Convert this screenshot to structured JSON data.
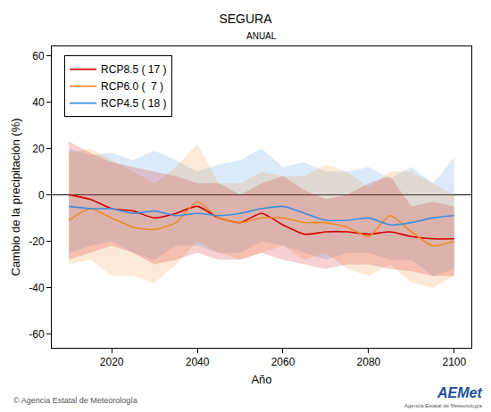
{
  "chart_data": {
    "type": "line",
    "title": "SEGURA",
    "subtitle": "ANUAL",
    "x_label": "Año",
    "y_label": "Cambio de la precipitación (%)",
    "annotations": [
      "© Agencia Estatal de Meteorología",
      "AEMet",
      "Agencia Estatal de Meteorología"
    ],
    "x": [
      2010,
      2015,
      2020,
      2025,
      2030,
      2035,
      2040,
      2045,
      2050,
      2055,
      2060,
      2065,
      2070,
      2075,
      2080,
      2085,
      2090,
      2095,
      2100
    ],
    "series": [
      {
        "name": "RCP8.5 ( 17 )",
        "color": "#d40000",
        "values": [
          0,
          -2,
          -6,
          -7,
          -10,
          -8,
          -5,
          -10,
          -12,
          -8,
          -13,
          -17,
          -16,
          -16,
          -17,
          -16,
          -18,
          -19,
          -19
        ],
        "upper": [
          23,
          18,
          14,
          12,
          10,
          8,
          5,
          5,
          0,
          5,
          8,
          2,
          -2,
          0,
          5,
          8,
          -5,
          -3,
          -5
        ],
        "lower": [
          -28,
          -25,
          -22,
          -25,
          -30,
          -28,
          -25,
          -28,
          -28,
          -25,
          -28,
          -30,
          -32,
          -30,
          -30,
          -32,
          -33,
          -35,
          -35
        ]
      },
      {
        "name": "RCP6.0 (  7 )",
        "color": "#f08a24",
        "values": [
          -11,
          -6,
          -10,
          -14,
          -15,
          -12,
          -3,
          -10,
          -12,
          -10,
          -10,
          -12,
          -12,
          -14,
          -18,
          -9,
          -16,
          -22,
          -20
        ],
        "upper": [
          18,
          20,
          15,
          10,
          5,
          12,
          22,
          5,
          5,
          10,
          8,
          8,
          13,
          10,
          3,
          10,
          10,
          5,
          0
        ],
        "lower": [
          -30,
          -28,
          -35,
          -35,
          -38,
          -30,
          -20,
          -25,
          -28,
          -25,
          -22,
          -28,
          -25,
          -32,
          -35,
          -30,
          -38,
          -40,
          -35
        ]
      },
      {
        "name": "RCP4.5 ( 18 )",
        "color": "#3d8fe0",
        "values": [
          -5,
          -6,
          -6,
          -8,
          -7,
          -9,
          -8,
          -9,
          -8,
          -6,
          -5,
          -8,
          -11,
          -11,
          -10,
          -13,
          -12,
          -10,
          -9
        ],
        "upper": [
          20,
          17,
          18,
          15,
          19,
          15,
          10,
          13,
          15,
          20,
          12,
          14,
          10,
          10,
          12,
          7,
          12,
          5,
          16
        ],
        "lower": [
          -25,
          -22,
          -20,
          -25,
          -28,
          -22,
          -22,
          -25,
          -25,
          -20,
          -22,
          -25,
          -28,
          -25,
          -25,
          -28,
          -28,
          -35,
          -32
        ]
      }
    ],
    "xlim": [
      2006,
      2104
    ],
    "xticks": [
      2020,
      2040,
      2060,
      2080,
      2100
    ],
    "ylim": [
      -66,
      64
    ],
    "yticks": [
      -60,
      -40,
      -20,
      0,
      20,
      40,
      60
    ],
    "grid": false,
    "legend": "top-left"
  }
}
